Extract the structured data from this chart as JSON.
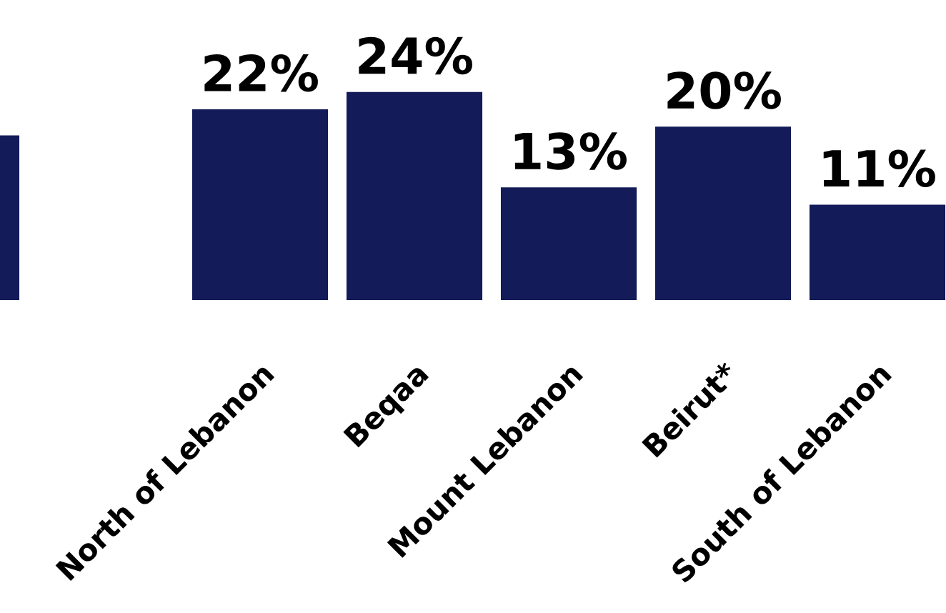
{
  "chart_data": {
    "type": "bar",
    "categories": [
      null,
      null,
      "North of Lebanon",
      "Beqaa",
      "Mount Lebanon",
      "Beirut*",
      "South of Lebanon"
    ],
    "values": [
      19,
      null,
      22,
      24,
      13,
      20,
      11
    ],
    "value_labels": [
      null,
      null,
      "22%",
      "24%",
      "13%",
      "20%",
      "11%"
    ],
    "color": "#131b58",
    "grid": false,
    "legend": false
  }
}
